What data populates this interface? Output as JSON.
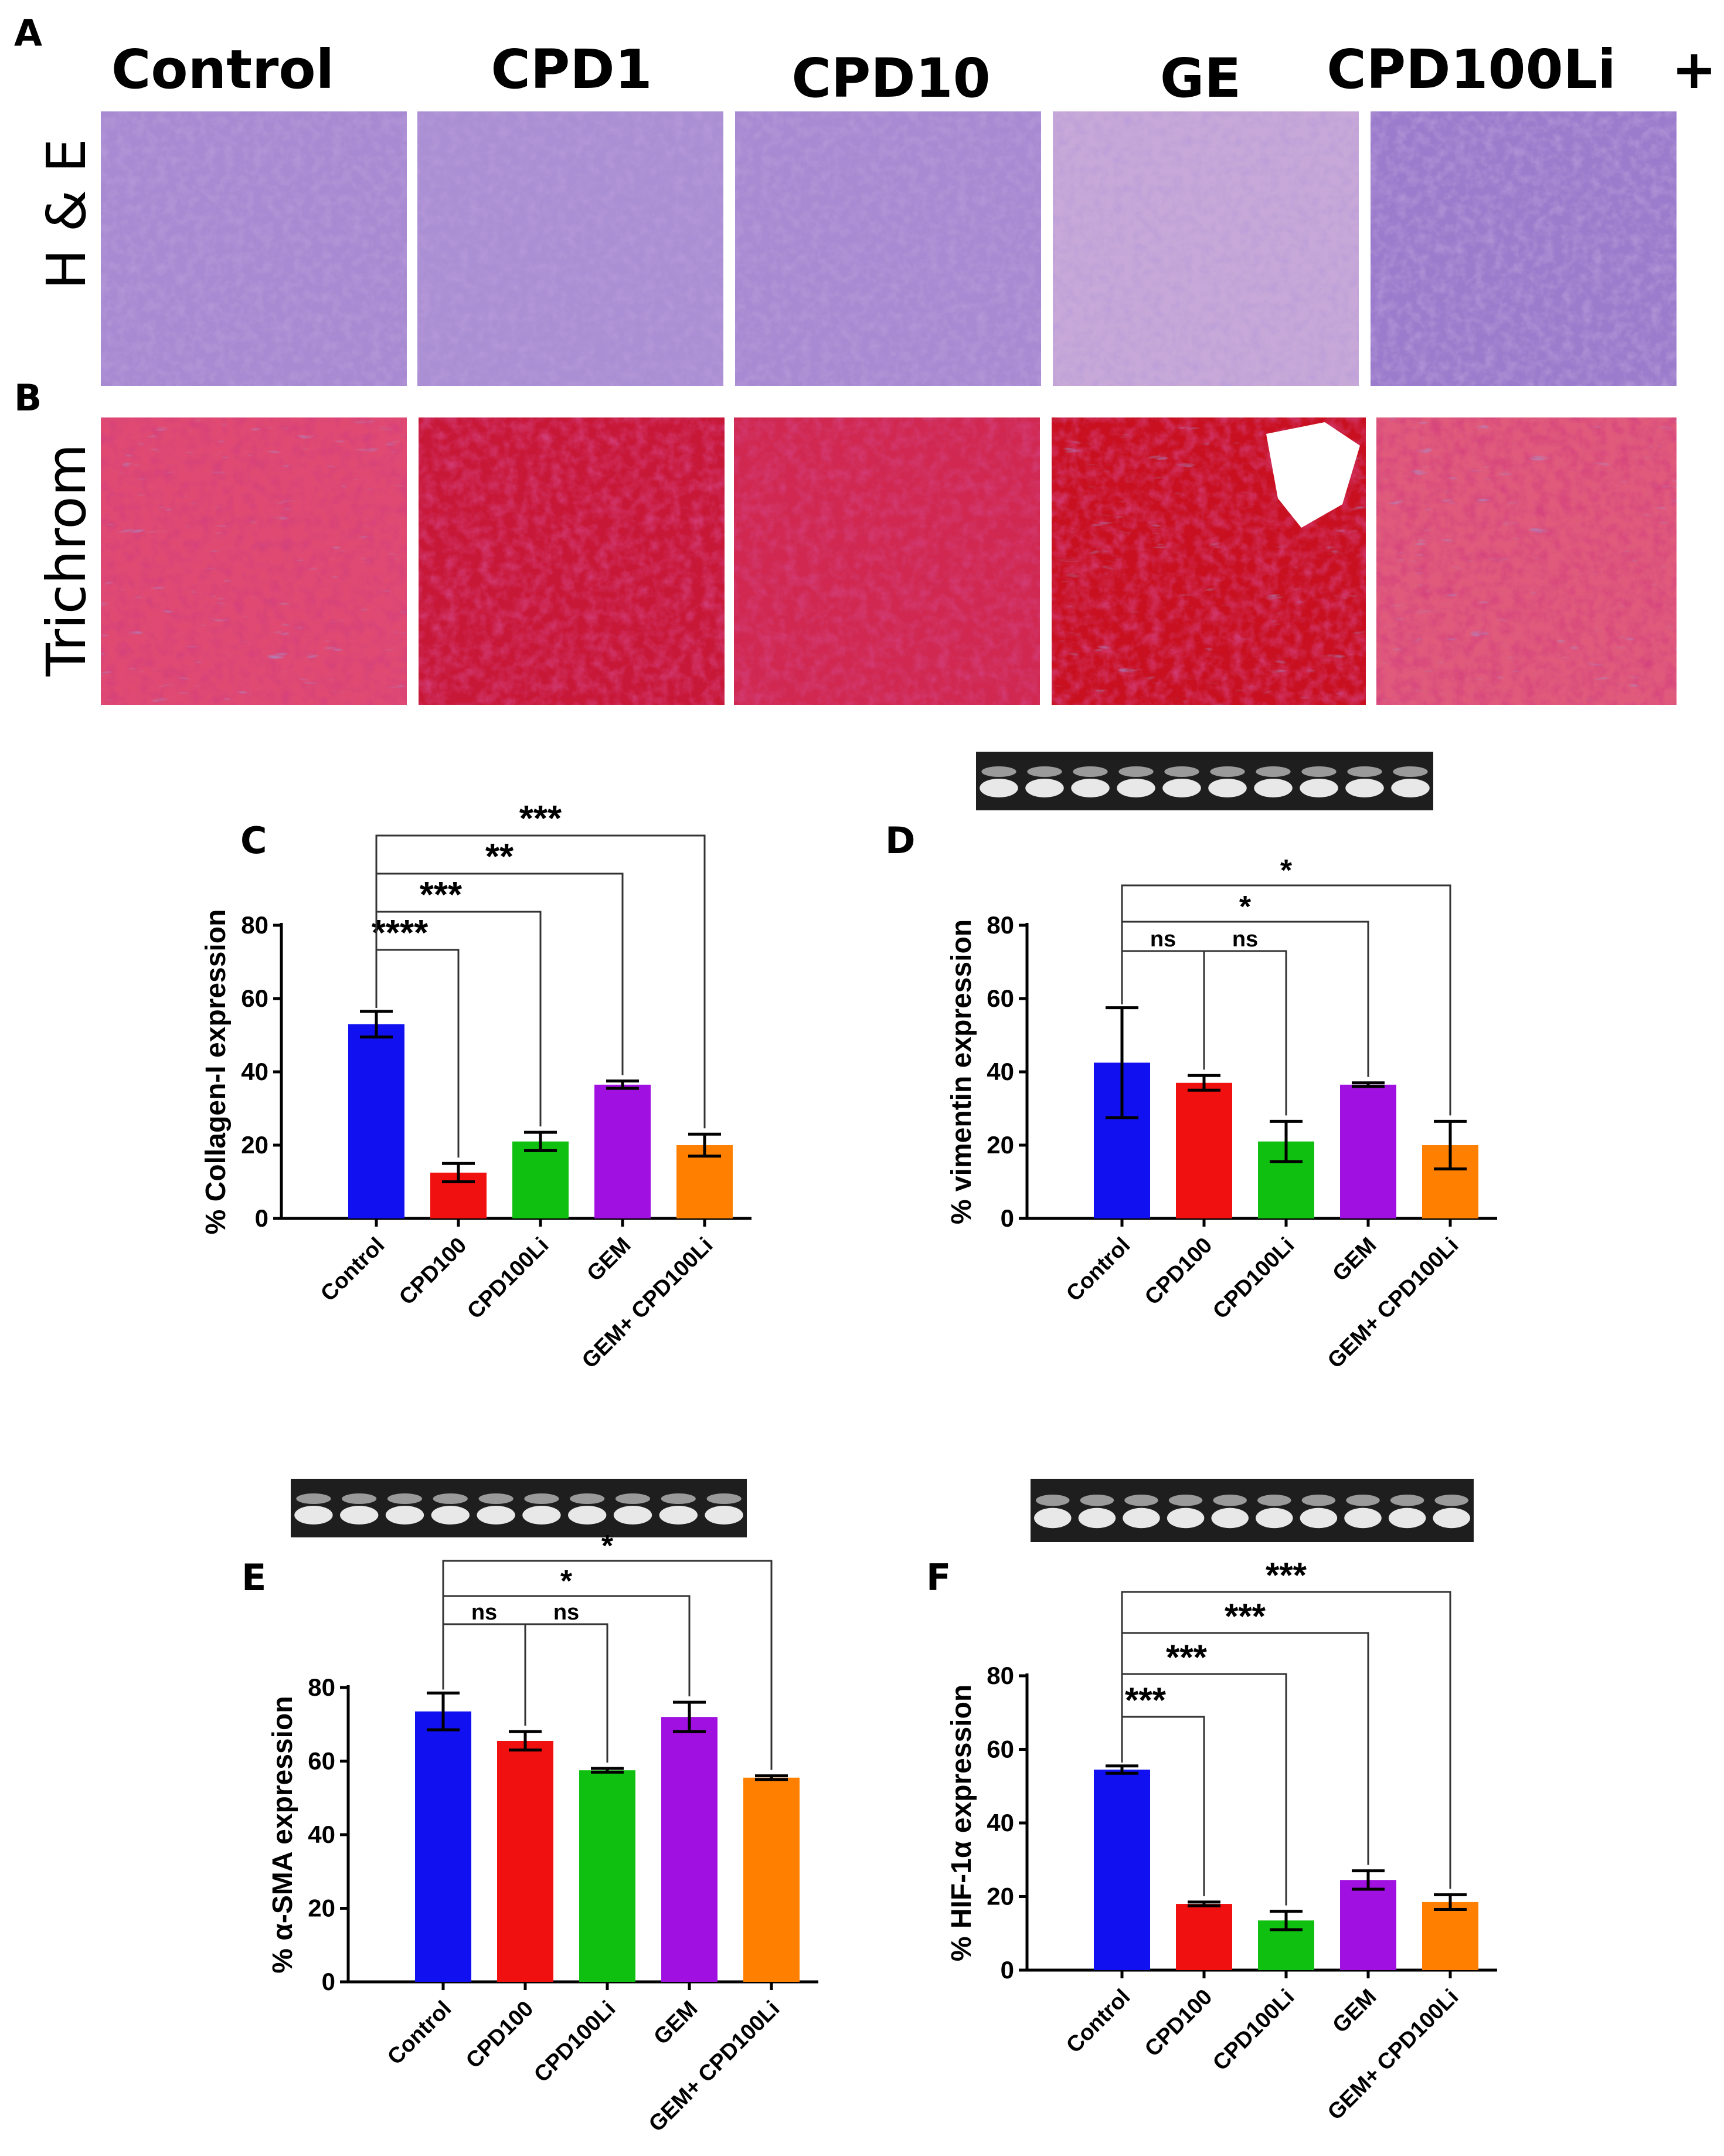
{
  "header": {
    "panel_a": "A",
    "panel_b": "B",
    "columns": [
      "Control",
      "CPD1",
      "CPD10",
      "GE",
      "CPD100Li",
      "+"
    ],
    "row_he": "H & E",
    "row_trichrom": "Trichrom"
  },
  "colors": {
    "he_base": "#a88ad2",
    "he_dark": "#7a52b0",
    "tri_base": "#d8325a",
    "tri_dark": "#b01030",
    "tri_blue": "#5060b8",
    "bar_colors": [
      "#1010f0",
      "#f01010",
      "#10c010",
      "#a010e0",
      "#ff8000"
    ]
  },
  "chart_data": [
    {
      "panel": "C",
      "type": "bar",
      "categories": [
        "Control",
        "CPD100",
        "CPD100Li",
        "GEM",
        "GEM+ CPD100Li"
      ],
      "values": [
        53,
        12.5,
        21,
        36.5,
        20
      ],
      "errors": [
        3.5,
        2.5,
        2.5,
        1,
        3
      ],
      "ylabel": "% Collagen-I expression",
      "ylim": [
        0,
        80
      ],
      "yticks": [
        "0",
        "20",
        "40",
        "60",
        "80"
      ],
      "blot": false,
      "comparisons": [
        {
          "target": "CPD100",
          "label": "****"
        },
        {
          "target": "CPD100Li",
          "label": "***"
        },
        {
          "target": "GEM",
          "label": "**"
        },
        {
          "target": "GEM+ CPD100Li",
          "label": "***"
        }
      ]
    },
    {
      "panel": "D",
      "type": "bar",
      "categories": [
        "Control",
        "CPD100",
        "CPD100Li",
        "GEM",
        "GEM+ CPD100Li"
      ],
      "values": [
        42.5,
        37,
        21,
        36.5,
        20
      ],
      "errors": [
        15,
        2,
        5.5,
        0.5,
        6.5
      ],
      "ylabel": "% vimentin expression",
      "ylim": [
        0,
        80
      ],
      "yticks": [
        "0",
        "20",
        "40",
        "60",
        "80"
      ],
      "blot": true,
      "comparisons": [
        {
          "target": "CPD100",
          "label": "ns"
        },
        {
          "target": "CPD100Li",
          "label": "ns"
        },
        {
          "target": "GEM",
          "label": "*"
        },
        {
          "target": "GEM+ CPD100Li",
          "label": "*"
        }
      ]
    },
    {
      "panel": "E",
      "type": "bar",
      "categories": [
        "Control",
        "CPD100",
        "CPD100Li",
        "GEM",
        "GEM+ CPD100Li"
      ],
      "values": [
        73.5,
        65.5,
        57.5,
        72,
        55.5
      ],
      "errors": [
        5,
        2.5,
        0.5,
        4,
        0.5
      ],
      "ylabel": "% α-SMA expression",
      "ylim": [
        0,
        80
      ],
      "yticks": [
        "0",
        "20",
        "40",
        "60",
        "80"
      ],
      "blot": true,
      "comparisons": [
        {
          "target": "CPD100",
          "label": "ns"
        },
        {
          "target": "CPD100Li",
          "label": "ns"
        },
        {
          "target": "GEM",
          "label": "*"
        },
        {
          "target": "GEM+ CPD100Li",
          "label": "*"
        }
      ]
    },
    {
      "panel": "F",
      "type": "bar",
      "categories": [
        "Control",
        "CPD100",
        "CPD100Li",
        "GEM",
        "GEM+ CPD100Li"
      ],
      "values": [
        54.5,
        18,
        13.5,
        24.5,
        18.5
      ],
      "errors": [
        1,
        0.5,
        2.5,
        2.5,
        2
      ],
      "ylabel": "% HIF-1α expression",
      "ylim": [
        0,
        80
      ],
      "yticks": [
        "0",
        "20",
        "40",
        "60",
        "80"
      ],
      "blot": true,
      "comparisons": [
        {
          "target": "CPD100",
          "label": "***"
        },
        {
          "target": "CPD100Li",
          "label": "***"
        },
        {
          "target": "GEM",
          "label": "***"
        },
        {
          "target": "GEM+ CPD100Li",
          "label": "***"
        }
      ]
    }
  ]
}
